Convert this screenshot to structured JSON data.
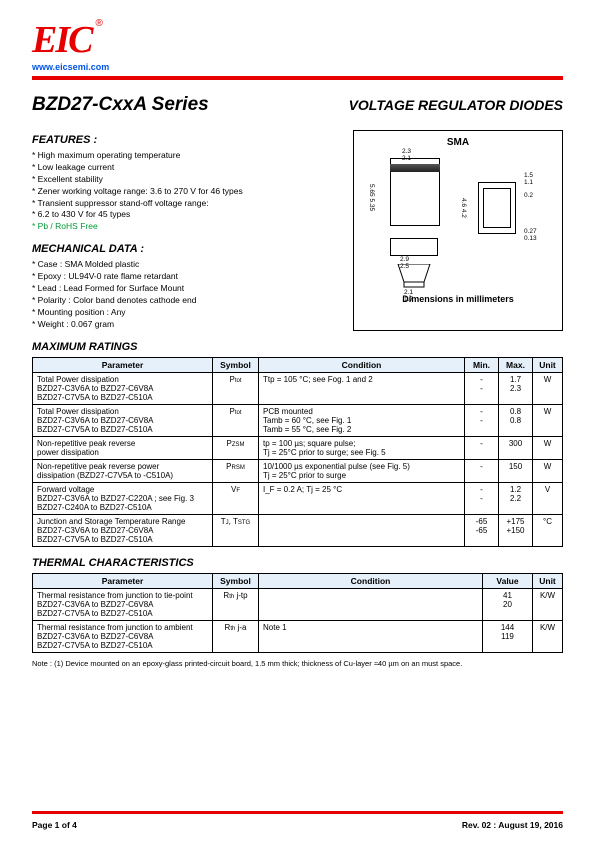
{
  "header": {
    "logo": "EIC",
    "url": "www.eicsemi.com"
  },
  "title_left": "BZD27-CxxA Series",
  "title_right": "VOLTAGE REGULATOR DIODES",
  "features_h": "FEATURES :",
  "features": [
    "High maximum operating temperature",
    "Low leakage current",
    "Excellent stability",
    "Zener working voltage range: 3.6 to 270 V for 46 types",
    "Transient suppressor stand-off voltage range:",
    "  6.2 to 430 V for 45 types"
  ],
  "rohs": "Pb / RoHS Free",
  "mech_h": "MECHANICAL  DATA :",
  "mech": [
    "Case :  SMA Molded plastic",
    "Epoxy : UL94V-0 rate flame retardant",
    "Lead : Lead Formed for Surface Mount",
    "Polarity : Color band denotes cathode end",
    "Mounting  position : Any",
    "Weight : 0.067 gram"
  ],
  "sma_label": "SMA",
  "dims": {
    "d1": "2.3",
    "d1b": "2.1",
    "d2": "1.5",
    "d2b": "1.1",
    "d3": "0.2",
    "d4": "5.65",
    "d4b": "5.35",
    "d5": "4.6",
    "d5b": "4.2",
    "d6": "0.27",
    "d6b": "0.13",
    "d7": "2.9",
    "d7b": "2.5",
    "d8": "2.1",
    "d8b": "1.7"
  },
  "dim_label": "Dimensions in millimeters",
  "table1_title": "MAXIMUM RATINGS",
  "th": {
    "param": "Parameter",
    "symbol": "Symbol",
    "cond": "Condition",
    "min": "Min.",
    "max": "Max.",
    "unit": "Unit",
    "value": "Value"
  },
  "t1": [
    {
      "p": "Total Power dissipation\nBZD27-C3V6A to BZD27-C6V8A\nBZD27-C7V5A to BZD27-C510A",
      "s": "P_tot",
      "c": "Ttp = 105 °C; see Fog. 1 and 2",
      "min": "-\n-",
      "max": "1.7\n2.3",
      "u": "W"
    },
    {
      "p": "Total Power dissipation\nBZD27-C3V6A to BZD27-C6V8A\nBZD27-C7V5A to BZD27-C510A",
      "s": "P_tot",
      "c": "PCB mounted\nTamb = 60 °C, see Fig. 1\nTamb = 55 °C, see Fig. 2",
      "min": "-\n-",
      "max": "0.8\n0.8",
      "u": "W"
    },
    {
      "p": "Non-repetitive peak reverse\npower dissipation",
      "s": "P_ZSM",
      "c": "tp = 100 µs; square pulse;\nTj = 25°C prior to surge; see Fig. 5",
      "min": "-",
      "max": "300",
      "u": "W"
    },
    {
      "p": "Non-repetitive peak reverse power\ndissipation (BZD27-C7V5A to -C510A)",
      "s": "P_RSM",
      "c": "10/1000 µs exponential pulse (see Fig. 5)\nTj = 25°C prior to surge",
      "min": "-",
      "max": "150",
      "u": "W"
    },
    {
      "p": "Forward voltage\nBZD27-C3V6A to BZD27-C220A ; see Fig. 3\nBZD27-C240A to BZD27-C510A",
      "s": "V_F",
      "c": "I_F = 0.2 A; Tj = 25 °C",
      "min": "-\n-",
      "max": "1.2\n2.2",
      "u": "V"
    },
    {
      "p": "Junction and Storage Temperature Range\nBZD27-C3V6A to BZD27-C6V8A\nBZD27-C7V5A to BZD27-C510A",
      "s": "T_J, T_STG",
      "c": "",
      "min": "-65\n-65",
      "max": "+175\n+150",
      "u": "°C"
    }
  ],
  "table2_title": "THERMAL CHARACTERISTICS",
  "t2": [
    {
      "p": "Thermal resistance from junction to tie-point\nBZD27-C3V6A to BZD27-C6V8A\nBZD27-C7V5A to BZD27-C510A",
      "s": "R_th j-tp",
      "c": "",
      "v": "41\n20",
      "u": "K/W"
    },
    {
      "p": "Thermal resistance from junction to ambient\nBZD27-C3V6A to BZD27-C6V8A\nBZD27-C7V5A to BZD27-C510A",
      "s": "R_th j-a",
      "c": "Note 1",
      "v": "144\n119",
      "u": "K/W"
    }
  ],
  "note": "Note : (1) Device mounted on an epoxy-glass printed-circuit board, 1.5 mm thick; thickness of Cu-layer ≈40 µm on an must space.",
  "footer": {
    "page": "Page 1 of 4",
    "rev": "Rev. 02 : August 19, 2016"
  }
}
